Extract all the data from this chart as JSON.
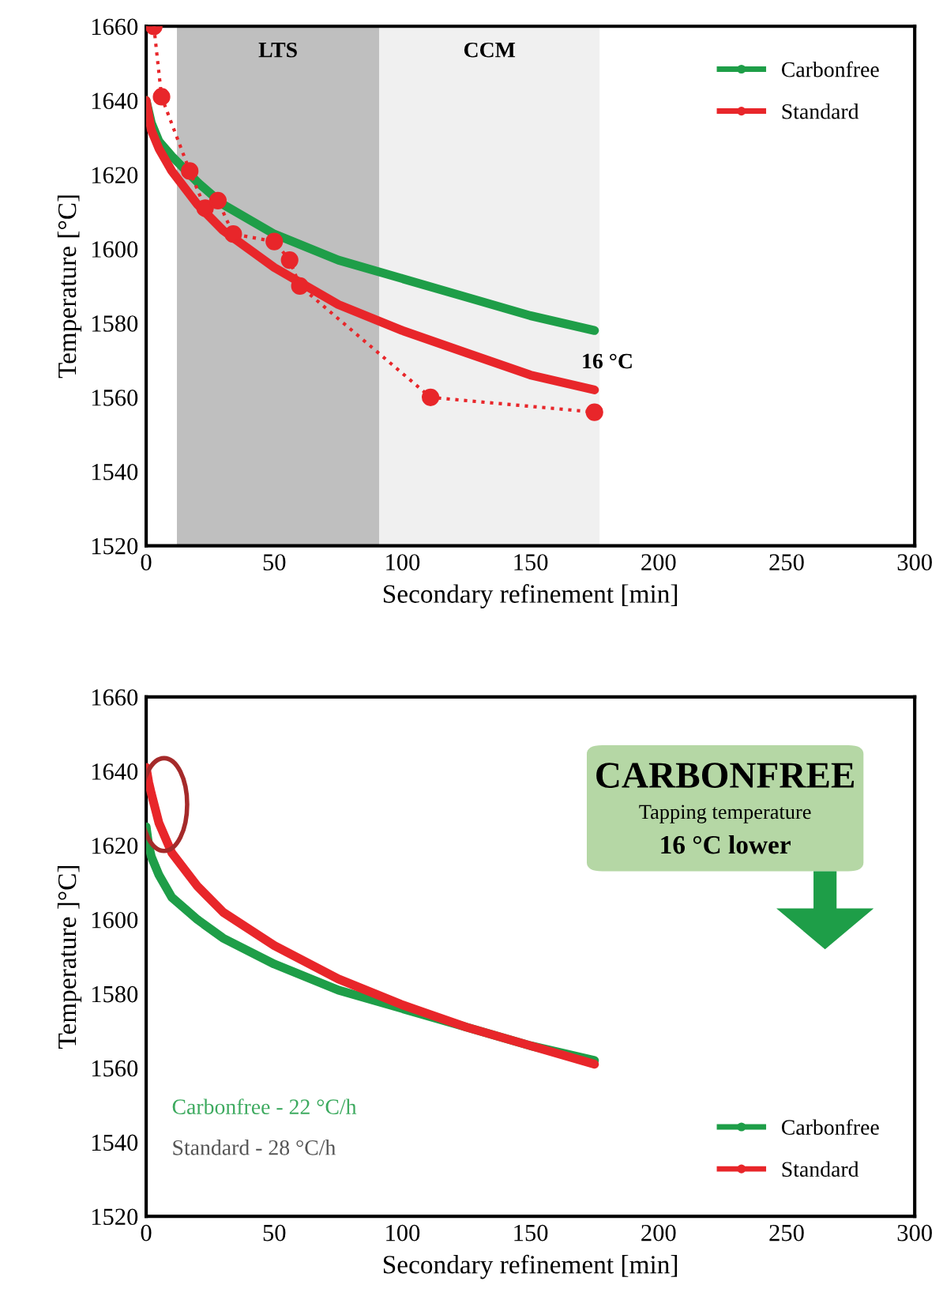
{
  "chart_data": [
    {
      "type": "line",
      "xlabel": "Secondary refinement [min]",
      "ylabel": "Temperature [°C]",
      "xlim": [
        0,
        300
      ],
      "ylim": [
        1520,
        1660
      ],
      "xticks": [
        0,
        50,
        100,
        150,
        200,
        250,
        300
      ],
      "yticks": [
        1520,
        1540,
        1560,
        1580,
        1600,
        1620,
        1640,
        1660
      ],
      "grid": false,
      "legend": "top right",
      "line_style": "solid",
      "marker": "none",
      "bands": [
        {
          "axis": "x",
          "from": 12,
          "to": 91,
          "label": "LTS",
          "color": "#bfbfbf"
        },
        {
          "axis": "x",
          "from": 91,
          "to": 177,
          "label": "CCM",
          "color": "#f0f0f0"
        }
      ],
      "annotations": [
        {
          "text": "16 °C",
          "x": 175,
          "y": 1563
        }
      ],
      "series": [
        {
          "name": "Carbonfree",
          "color": "#1e9e48",
          "x": [
            0,
            2,
            5,
            10,
            20,
            30,
            50,
            75,
            100,
            125,
            150,
            175
          ],
          "values": [
            1640,
            1634,
            1629,
            1625,
            1618,
            1612,
            1604,
            1597,
            1592,
            1587,
            1582,
            1578
          ]
        },
        {
          "name": "Standard",
          "color": "#e8262a",
          "x": [
            0,
            2,
            5,
            10,
            20,
            30,
            50,
            75,
            100,
            125,
            150,
            175
          ],
          "values": [
            1640,
            1632,
            1627,
            1621,
            1612,
            1605,
            1595,
            1585,
            1578,
            1572,
            1566,
            1562
          ]
        },
        {
          "color": "#e8262a",
          "line_style": "dotted",
          "marker": "circle",
          "x": [
            3,
            6,
            17,
            23,
            28,
            34,
            50,
            56,
            60,
            111,
            175
          ],
          "values": [
            1660,
            1641,
            1621,
            1611,
            1613,
            1604,
            1602,
            1597,
            1590,
            1560,
            1556
          ]
        }
      ]
    },
    {
      "type": "line",
      "xlabel": "Secondary refinement [min]",
      "ylabel": "Temperature ]°C]",
      "xlim": [
        0,
        300
      ],
      "ylim": [
        1520,
        1660
      ],
      "xticks": [
        0,
        50,
        100,
        150,
        200,
        250,
        300
      ],
      "yticks": [
        1520,
        1540,
        1560,
        1580,
        1600,
        1620,
        1640,
        1660
      ],
      "grid": false,
      "legend": "bottom right",
      "line_style": "solid",
      "marker": "none",
      "annotations": [
        "CARBONFREE",
        "Tapping temperature",
        "16 °C lower",
        "Carbonfree - 22 °C/h",
        "Standard - 28 °C/h"
      ],
      "series": [
        {
          "name": "Carbonfree",
          "color": "#1e9e48",
          "x": [
            0,
            1,
            2,
            5,
            10,
            20,
            30,
            50,
            75,
            100,
            125,
            150,
            175
          ],
          "values": [
            1625,
            1620,
            1617,
            1612,
            1606,
            1600,
            1595,
            1588,
            1581,
            1576,
            1571,
            1566,
            1562
          ]
        },
        {
          "name": "Standard",
          "color": "#e8262a",
          "x": [
            0,
            1,
            2,
            5,
            10,
            20,
            30,
            50,
            75,
            100,
            125,
            150,
            175
          ],
          "values": [
            1641,
            1637,
            1634,
            1626,
            1618,
            1609,
            1602,
            1593,
            1584,
            1577,
            1571,
            1566,
            1561
          ]
        }
      ]
    }
  ]
}
